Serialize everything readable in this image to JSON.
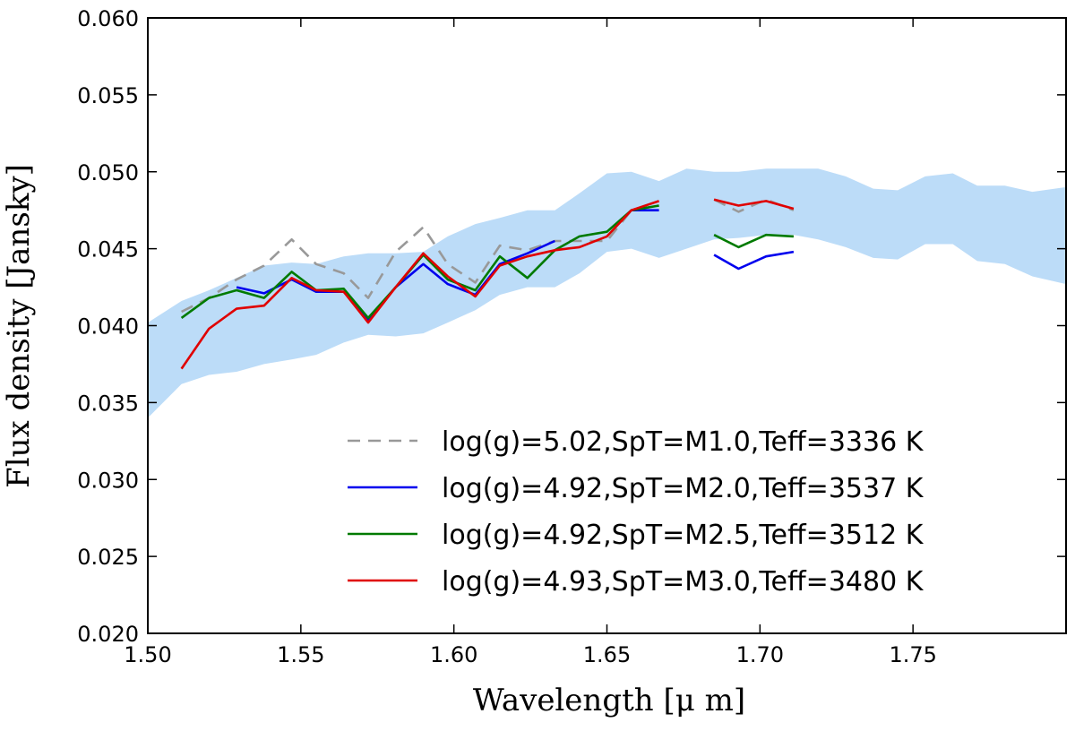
{
  "chart_data": {
    "type": "line",
    "title": "",
    "xlabel": "Wavelength [μ m]",
    "ylabel": "Flux density [Jansky]",
    "xlim": [
      1.5,
      1.8
    ],
    "ylim": [
      0.02,
      0.06
    ],
    "x_ticks": [
      1.5,
      1.55,
      1.6,
      1.65,
      1.7,
      1.75
    ],
    "x_tick_labels": [
      "1.50",
      "1.55",
      "1.60",
      "1.65",
      "1.70",
      "1.75"
    ],
    "y_ticks": [
      0.02,
      0.025,
      0.03,
      0.035,
      0.04,
      0.045,
      0.05,
      0.055,
      0.06
    ],
    "y_tick_labels": [
      "0.020",
      "0.025",
      "0.030",
      "0.035",
      "0.040",
      "0.045",
      "0.050",
      "0.055",
      "0.060"
    ],
    "grid": false,
    "legend_position": "lower-right",
    "band": {
      "name": "observed range",
      "color": "#bcdcf8",
      "x": [
        1.5,
        1.511,
        1.52,
        1.529,
        1.538,
        1.547,
        1.555,
        1.564,
        1.572,
        1.581,
        1.59,
        1.598,
        1.607,
        1.615,
        1.624,
        1.633,
        1.641,
        1.65,
        1.658,
        1.667,
        1.676,
        1.685,
        1.693,
        1.702,
        1.711,
        1.719,
        1.728,
        1.737,
        1.745,
        1.754,
        1.763,
        1.771,
        1.78,
        1.789,
        1.8
      ],
      "lower": [
        0.034,
        0.0362,
        0.0368,
        0.037,
        0.0375,
        0.0378,
        0.0381,
        0.0389,
        0.0394,
        0.0393,
        0.0395,
        0.0402,
        0.041,
        0.042,
        0.0425,
        0.0425,
        0.0434,
        0.0448,
        0.045,
        0.0444,
        0.045,
        0.0456,
        0.0457,
        0.0459,
        0.0459,
        0.0456,
        0.0451,
        0.0444,
        0.0443,
        0.0453,
        0.0453,
        0.0442,
        0.044,
        0.0432,
        0.0427
      ],
      "upper": [
        0.0402,
        0.0416,
        0.0423,
        0.0431,
        0.0439,
        0.0441,
        0.044,
        0.0445,
        0.0447,
        0.0447,
        0.0448,
        0.0458,
        0.0466,
        0.047,
        0.0475,
        0.0475,
        0.0486,
        0.0499,
        0.05,
        0.0494,
        0.0502,
        0.05,
        0.05,
        0.0502,
        0.0502,
        0.0502,
        0.0497,
        0.0489,
        0.0488,
        0.0497,
        0.0499,
        0.0491,
        0.0491,
        0.0487,
        0.049
      ]
    },
    "series": [
      {
        "name": "log(g)=5.02,SpT=M1.0,Teff=3336 K",
        "color": "#999999",
        "dashed": true,
        "segments": [
          {
            "x": [
              1.511,
              1.52,
              1.529,
              1.538,
              1.547,
              1.555,
              1.564,
              1.572,
              1.581,
              1.59,
              1.598,
              1.607,
              1.615,
              1.624,
              1.633,
              1.641,
              1.65,
              1.658,
              1.667
            ],
            "y": [
              0.0409,
              0.0418,
              0.043,
              0.0439,
              0.0456,
              0.044,
              0.0434,
              0.0418,
              0.0448,
              0.0464,
              0.044,
              0.0428,
              0.0452,
              0.0449,
              0.0455,
              0.0455,
              0.0455,
              0.0475,
              0.0478
            ]
          },
          {
            "x": [
              1.685,
              1.693,
              1.702,
              1.711
            ],
            "y": [
              0.0482,
              0.0474,
              0.0482,
              0.0475
            ]
          }
        ]
      },
      {
        "name": "log(g)=4.92,SpT=M2.0,Teff=3537 K",
        "color": "#0000ee",
        "dashed": false,
        "segments": [
          {
            "x": [
              1.529,
              1.538,
              1.547,
              1.555,
              1.564,
              1.572,
              1.581,
              1.59,
              1.598,
              1.607,
              1.615,
              1.624,
              1.633
            ],
            "y": [
              0.0425,
              0.0421,
              0.043,
              0.0422,
              0.0422,
              0.0404,
              0.0425,
              0.044,
              0.0427,
              0.042,
              0.044,
              0.0447,
              0.0455
            ]
          },
          {
            "x": [
              1.658,
              1.667
            ],
            "y": [
              0.0475,
              0.0475
            ]
          },
          {
            "x": [
              1.685,
              1.693,
              1.702,
              1.711
            ],
            "y": [
              0.0446,
              0.0437,
              0.0445,
              0.0448
            ]
          }
        ]
      },
      {
        "name": "log(g)=4.92,SpT=M2.5,Teff=3512 K",
        "color": "#007a00",
        "dashed": false,
        "segments": [
          {
            "x": [
              1.511,
              1.52,
              1.529,
              1.538,
              1.547,
              1.555,
              1.564,
              1.572,
              1.581,
              1.59,
              1.598,
              1.607,
              1.615,
              1.624,
              1.633,
              1.641,
              1.65,
              1.658,
              1.667
            ],
            "y": [
              0.0405,
              0.0418,
              0.0423,
              0.0418,
              0.0435,
              0.0423,
              0.0424,
              0.0405,
              0.0425,
              0.0446,
              0.043,
              0.0423,
              0.0445,
              0.0431,
              0.0449,
              0.0458,
              0.0461,
              0.0475,
              0.0478
            ]
          },
          {
            "x": [
              1.685,
              1.693,
              1.702,
              1.711
            ],
            "y": [
              0.0459,
              0.0451,
              0.0459,
              0.0458
            ]
          }
        ]
      },
      {
        "name": "log(g)=4.93,SpT=M3.0,Teff=3480 K",
        "color": "#e00000",
        "dashed": false,
        "segments": [
          {
            "x": [
              1.511,
              1.52,
              1.529,
              1.538,
              1.547,
              1.555,
              1.564,
              1.572,
              1.581,
              1.59,
              1.598,
              1.607,
              1.615,
              1.624,
              1.633,
              1.641,
              1.65,
              1.658,
              1.667
            ],
            "y": [
              0.0372,
              0.0398,
              0.0411,
              0.0413,
              0.0431,
              0.0423,
              0.0422,
              0.0402,
              0.0425,
              0.0447,
              0.0432,
              0.0419,
              0.0439,
              0.0445,
              0.0449,
              0.0451,
              0.0458,
              0.0475,
              0.0481
            ]
          },
          {
            "x": [
              1.685,
              1.693,
              1.702,
              1.711
            ],
            "y": [
              0.0482,
              0.0478,
              0.0481,
              0.0476
            ]
          }
        ]
      }
    ]
  }
}
